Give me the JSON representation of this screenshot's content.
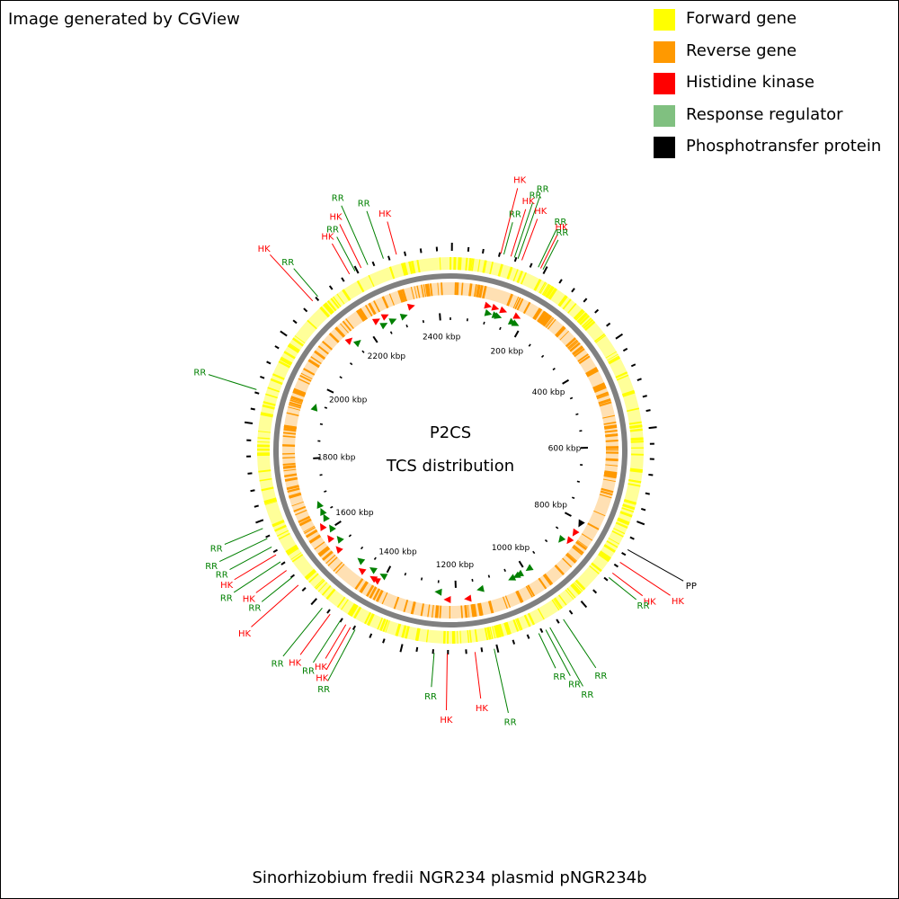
{
  "credit": "Image generated by CGView",
  "legend": {
    "items": [
      {
        "label": "Forward gene",
        "color": "#ffff00"
      },
      {
        "label": "Reverse gene",
        "color": "#ff9900"
      },
      {
        "label": "Histidine kinase",
        "color": "#ff0000"
      },
      {
        "label": "Response regulator",
        "color": "#80c080"
      },
      {
        "label": "Phosphotransfer protein",
        "color": "#000000"
      }
    ]
  },
  "map": {
    "title": "P2CS",
    "subtitle": "TCS distribution",
    "sequence_name": "Sinorhizobium fredii NGR234 plasmid pNGR234b",
    "sequence_length_kbp": 2430,
    "tick_labels": [
      "200 kbp",
      "400 kbp",
      "600 kbp",
      "800 kbp",
      "1000 kbp",
      "1200 kbp",
      "1400 kbp",
      "1600 kbp",
      "1800 kbp",
      "2000 kbp",
      "2200 kbp",
      "2400 kbp"
    ],
    "tick_positions_kbp": [
      200,
      400,
      600,
      800,
      1000,
      1200,
      1400,
      1600,
      1800,
      2000,
      2200,
      2400
    ],
    "label_colors": {
      "HK": "#ff0000",
      "RR": "#008000",
      "PP": "#000000"
    },
    "arrow_colors": {
      "HK": "#ff0000",
      "RR": "#008000",
      "PP": "#000000"
    },
    "features": [
      {
        "label": "HK",
        "kbp": 97
      },
      {
        "label": "RR",
        "kbp": 103
      },
      {
        "label": "HK",
        "kbp": 117
      },
      {
        "label": "RR",
        "kbp": 124
      },
      {
        "label": "RR",
        "kbp": 131
      },
      {
        "label": "HK",
        "kbp": 139
      },
      {
        "label": "RR",
        "kbp": 173
      },
      {
        "label": "HK",
        "kbp": 178
      },
      {
        "label": "RR",
        "kbp": 183
      },
      {
        "label": "PP",
        "kbp": 805
      },
      {
        "label": "HK",
        "kbp": 833
      },
      {
        "label": "HK",
        "kbp": 858
      },
      {
        "label": "RR",
        "kbp": 869
      },
      {
        "label": "RR",
        "kbp": 987
      },
      {
        "label": "RR",
        "kbp": 1017
      },
      {
        "label": "RR",
        "kbp": 1026
      },
      {
        "label": "RR",
        "kbp": 1041
      },
      {
        "label": "RR",
        "kbp": 1131
      },
      {
        "label": "HK",
        "kbp": 1168
      },
      {
        "label": "HK",
        "kbp": 1221
      },
      {
        "label": "RR",
        "kbp": 1246
      },
      {
        "label": "RR",
        "kbp": 1404
      },
      {
        "label": "HK",
        "kbp": 1414
      },
      {
        "label": "HK",
        "kbp": 1424
      },
      {
        "label": "RR",
        "kbp": 1437
      },
      {
        "label": "HK",
        "kbp": 1460
      },
      {
        "label": "RR",
        "kbp": 1479
      },
      {
        "label": "HK",
        "kbp": 1542
      },
      {
        "label": "RR",
        "kbp": 1561
      },
      {
        "label": "HK",
        "kbp": 1578
      },
      {
        "label": "RR",
        "kbp": 1598
      },
      {
        "label": "HK",
        "kbp": 1614
      },
      {
        "label": "RR",
        "kbp": 1631
      },
      {
        "label": "RR",
        "kbp": 1649
      },
      {
        "label": "RR",
        "kbp": 1670
      },
      {
        "label": "RR",
        "kbp": 1940
      },
      {
        "label": "HK",
        "kbp": 2142
      },
      {
        "label": "RR",
        "kbp": 2155
      },
      {
        "label": "HK",
        "kbp": 2229
      },
      {
        "label": "RR",
        "kbp": 2241
      },
      {
        "label": "HK",
        "kbp": 2254
      },
      {
        "label": "RR",
        "kbp": 2268
      },
      {
        "label": "RR",
        "kbp": 2300
      },
      {
        "label": "HK",
        "kbp": 2326
      }
    ]
  }
}
